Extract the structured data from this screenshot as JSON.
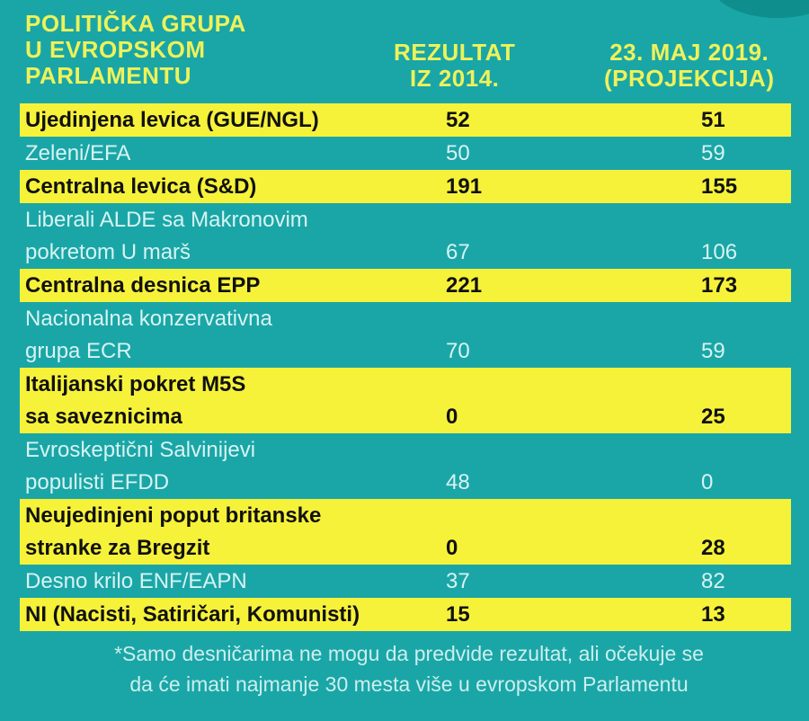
{
  "chart_data": {
    "type": "table",
    "columns": {
      "group": [
        "POLITIČKA GRUPA",
        "U EVROPSKOM",
        "PARLAMENTU"
      ],
      "result_2014": [
        "REZULTAT",
        "IZ 2014."
      ],
      "projection_2019": [
        "23. MAJ 2019.",
        "(PROJEKCIJA)"
      ]
    },
    "rows": [
      {
        "name": [
          "Ujedinjena levica (GUE/NGL)"
        ],
        "v2014": "52",
        "v2019": "51"
      },
      {
        "name": [
          "Zeleni/EFA"
        ],
        "v2014": "50",
        "v2019": "59"
      },
      {
        "name": [
          "Centralna levica (S&D)"
        ],
        "v2014": "191",
        "v2019": "155"
      },
      {
        "name": [
          "Liberali ALDE sa Makronovim",
          "pokretom U marš"
        ],
        "v2014": "67",
        "v2019": "106"
      },
      {
        "name": [
          "Centralna desnica EPP"
        ],
        "v2014": "221",
        "v2019": "173"
      },
      {
        "name": [
          "Nacionalna konzervativna",
          "grupa ECR"
        ],
        "v2014": "70",
        "v2019": "59"
      },
      {
        "name": [
          "Italijanski pokret M5S",
          "sa saveznicima"
        ],
        "v2014": "0",
        "v2019": "25"
      },
      {
        "name": [
          "Evroskeptični Salvinijevi",
          "populisti EFDD"
        ],
        "v2014": "48",
        "v2019": "0"
      },
      {
        "name": [
          "Neujedinjeni poput britanske",
          "stranke za Bregzit"
        ],
        "v2014": "0",
        "v2019": "28"
      },
      {
        "name": [
          "Desno krilo ENF/EAPN"
        ],
        "v2014": "37",
        "v2019": "82"
      },
      {
        "name": [
          "NI (Nacisti, Satiričari, Komunisti)"
        ],
        "v2014": "15",
        "v2019": "13"
      }
    ],
    "footnote": [
      "*Samo desničarima ne mogu da predvide rezultat, ali očekuje se",
      "da će imati najmanje 30 mesta više u evropskom Parlamentu"
    ]
  },
  "colors": {
    "background": "#1aa6a6",
    "header_text": "#eef25a",
    "highlight_row": "#f6f23a",
    "plain_text": "#d8f3f3"
  }
}
